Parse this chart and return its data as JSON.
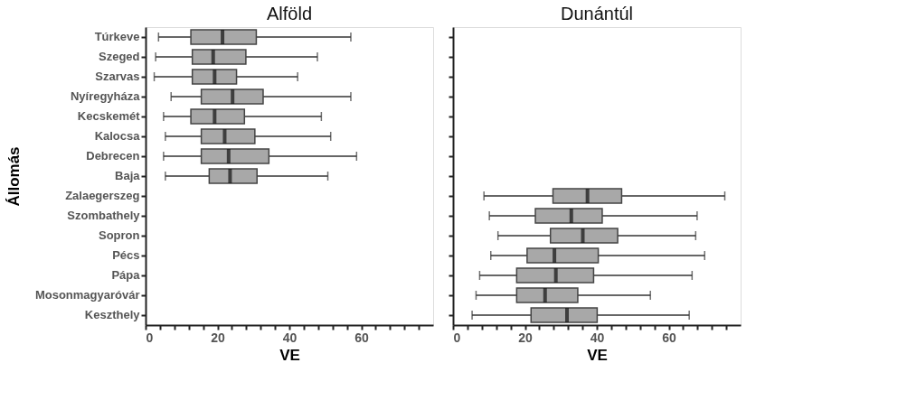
{
  "chart_data": [
    {
      "type": "box",
      "title": "Alföld",
      "xlabel": "VE",
      "ylabel": "Állomás",
      "orientation": "horizontal",
      "color": "#a8a8a8",
      "categories": [
        "Túrkeve",
        "Szeged",
        "Szarvas",
        "Nyíregyháza",
        "Kecskemét",
        "Kalocsa",
        "Debrecen",
        "Baja",
        "Zalaegerszeg",
        "Szombathely",
        "Sopron",
        "Pécs",
        "Pápa",
        "Mosonmagyaróvár",
        "Keszthely"
      ],
      "boxes": [
        {
          "low": 3.6,
          "q1": 12.6,
          "median": 21.4,
          "q3": 30.8,
          "high": 57.1
        },
        {
          "low": 2.8,
          "q1": 13.0,
          "median": 18.8,
          "q3": 27.9,
          "high": 47.8
        },
        {
          "low": 2.4,
          "q1": 13.0,
          "median": 19.2,
          "q3": 25.3,
          "high": 42.3
        },
        {
          "low": 7.1,
          "q1": 15.5,
          "median": 24.2,
          "q3": 32.7,
          "high": 57.1
        },
        {
          "low": 5.0,
          "q1": 12.6,
          "median": 19.2,
          "q3": 27.5,
          "high": 48.9
        },
        {
          "low": 5.5,
          "q1": 15.5,
          "median": 22.0,
          "q3": 30.4,
          "high": 51.5
        },
        {
          "low": 5.0,
          "q1": 15.5,
          "median": 23.1,
          "q3": 34.3,
          "high": 58.7
        },
        {
          "low": 5.5,
          "q1": 17.7,
          "median": 23.5,
          "q3": 31.0,
          "high": 50.7
        },
        null,
        null,
        null,
        null,
        null,
        null,
        null
      ],
      "xlim": [
        0,
        80
      ],
      "xticks": [
        0,
        {
          "value": 4,
          "label": null
        },
        {
          "value": 8,
          "label": null
        },
        {
          "value": 12,
          "label": null
        },
        {
          "value": 16,
          "label": null
        },
        20,
        {
          "value": 24,
          "label": null
        },
        {
          "value": 28,
          "label": null
        },
        {
          "value": 32,
          "label": null
        },
        {
          "value": 36,
          "label": null
        },
        40,
        {
          "value": 44,
          "label": null
        },
        {
          "value": 48,
          "label": null
        },
        {
          "value": 52,
          "label": null
        },
        {
          "value": 56,
          "label": null
        },
        60,
        {
          "value": 64,
          "label": null
        },
        {
          "value": 68,
          "label": null
        },
        {
          "value": 72,
          "label": null
        },
        {
          "value": 76,
          "label": null
        }
      ],
      "grid": false
    },
    {
      "type": "box",
      "title": "Dunántúl",
      "xlabel": "VE",
      "orientation": "horizontal",
      "color": "#a8a8a8",
      "tick_labels": "x",
      "categories": [
        null,
        null,
        null,
        null,
        null,
        null,
        null,
        null,
        null,
        null,
        null,
        null,
        null,
        null,
        null
      ],
      "boxes": [
        null,
        null,
        null,
        null,
        null,
        null,
        null,
        null,
        {
          "low": 8.6,
          "q1": 27.8,
          "median": 37.4,
          "q3": 46.9,
          "high": 75.6
        },
        {
          "low": 10.1,
          "q1": 22.9,
          "median": 32.9,
          "q3": 41.5,
          "high": 67.9
        },
        {
          "low": 12.5,
          "q1": 27.1,
          "median": 36.1,
          "q3": 45.8,
          "high": 67.5
        },
        {
          "low": 10.5,
          "q1": 20.6,
          "median": 28.2,
          "q3": 40.4,
          "high": 70.0
        },
        {
          "low": 7.4,
          "q1": 17.7,
          "median": 28.6,
          "q3": 39.1,
          "high": 66.5
        },
        {
          "low": 6.4,
          "q1": 17.7,
          "median": 25.6,
          "q3": 34.7,
          "high": 54.9
        },
        {
          "low": 5.3,
          "q1": 21.7,
          "median": 31.7,
          "q3": 40.1,
          "high": 65.7
        }
      ],
      "xlim": [
        0,
        80
      ],
      "xticks": [
        0,
        {
          "value": 4,
          "label": null
        },
        {
          "value": 8,
          "label": null
        },
        {
          "value": 12,
          "label": null
        },
        {
          "value": 16,
          "label": null
        },
        20,
        {
          "value": 24,
          "label": null
        },
        {
          "value": 28,
          "label": null
        },
        {
          "value": 32,
          "label": null
        },
        {
          "value": 36,
          "label": null
        },
        40,
        {
          "value": 44,
          "label": null
        },
        {
          "value": 48,
          "label": null
        },
        {
          "value": 52,
          "label": null
        },
        {
          "value": 56,
          "label": null
        },
        60,
        {
          "value": 64,
          "label": null
        },
        {
          "value": 68,
          "label": null
        },
        {
          "value": 72,
          "label": null
        },
        {
          "value": 76,
          "label": null
        }
      ],
      "grid": false
    }
  ]
}
